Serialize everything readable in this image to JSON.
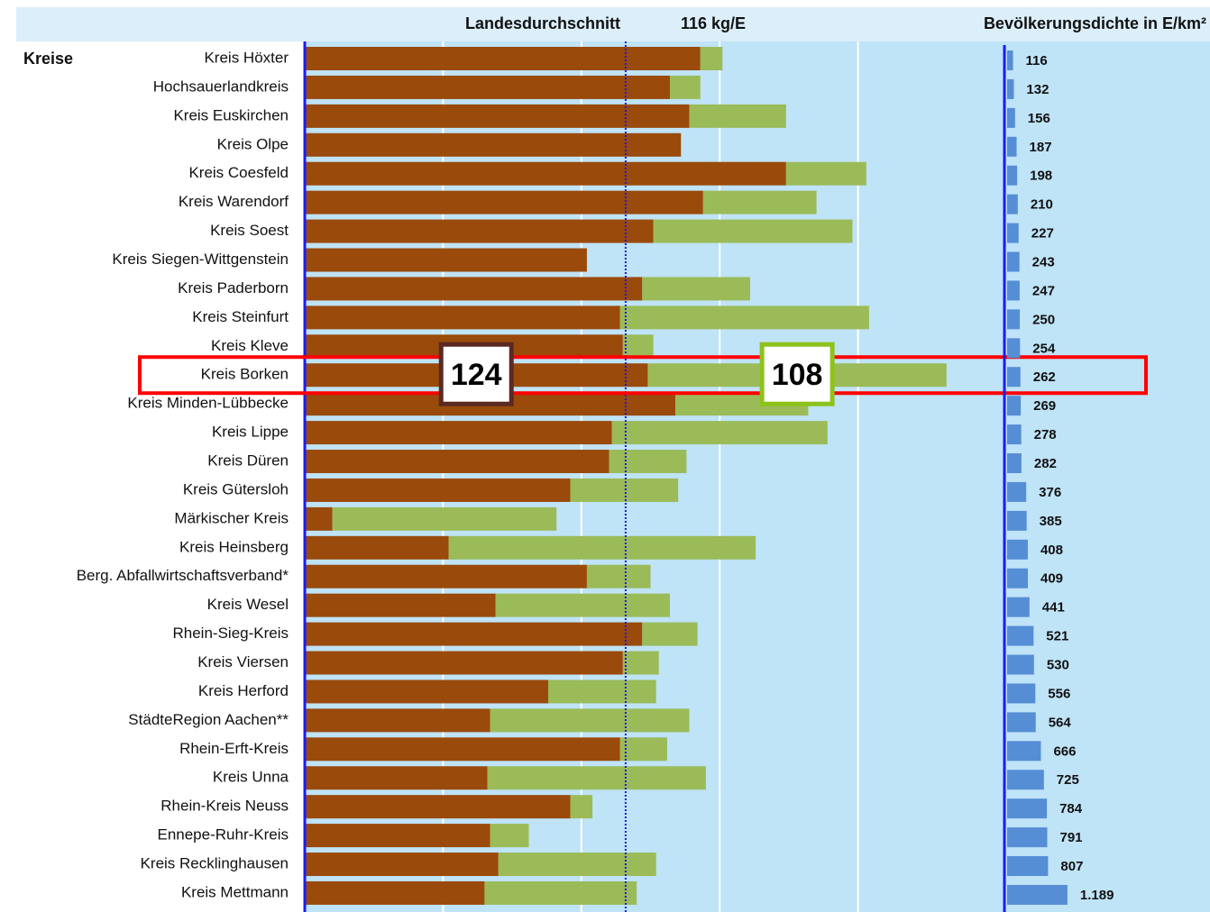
{
  "chart_data": [
    {
      "type": "stacked-hbar",
      "category_header": "Kreise",
      "average_label": "Landesdurchschnitt",
      "average_value": 116,
      "average_value_label": "116 kg/E",
      "categories": [
        "Kreis Höxter",
        "Hochsauerlandkreis",
        "Kreis Euskirchen",
        "Kreis Olpe",
        "Kreis Coesfeld",
        "Kreis Warendorf",
        "Kreis Soest",
        "Kreis Siegen-Wittgenstein",
        "Kreis Paderborn",
        "Kreis Steinfurt",
        "Kreis Kleve",
        "Kreis Borken",
        "Kreis Minden-Lübbecke",
        "Kreis Lippe",
        "Kreis Düren",
        "Kreis Gütersloh",
        "Märkischer Kreis",
        "Kreis Heinsberg",
        "Berg. Abfallwirtschaftsverband*",
        "Kreis Wesel",
        "Rhein-Sieg-Kreis",
        "Kreis Viersen",
        "Kreis Herford",
        "StädteRegion Aachen**",
        "Rhein-Erft-Kreis",
        "Kreis Unna",
        "Rhein-Kreis Neuss",
        "Ennepe-Ruhr-Kreis",
        "Kreis Recklinghausen",
        "Kreis Mettmann"
      ],
      "series": [
        {
          "color": "#9a4a0a",
          "label_border": "#5a2a22",
          "values": [
            143,
            132,
            139,
            136,
            174,
            144,
            126,
            102,
            122,
            114,
            115,
            124,
            134,
            111,
            110,
            96,
            10,
            52,
            102,
            69,
            122,
            115,
            88,
            67,
            114,
            66,
            96,
            67,
            70,
            65
          ],
          "value_labels": [
            null,
            null,
            null,
            null,
            null,
            null,
            null,
            null,
            null,
            null,
            null,
            "124",
            null,
            null,
            null,
            null,
            null,
            null,
            null,
            null,
            null,
            null,
            null,
            null,
            null,
            null,
            null,
            null,
            null,
            null
          ]
        },
        {
          "color": "#9bbb59",
          "label_border": "#8cc21a",
          "values": [
            8,
            11,
            35,
            0,
            29,
            41,
            72,
            0,
            39,
            90,
            11,
            108,
            48,
            78,
            28,
            39,
            81,
            111,
            23,
            63,
            20,
            13,
            39,
            72,
            17,
            79,
            8,
            14,
            57,
            55
          ],
          "value_labels": [
            null,
            null,
            null,
            null,
            null,
            null,
            null,
            null,
            null,
            null,
            null,
            "108",
            null,
            null,
            null,
            null,
            null,
            null,
            null,
            null,
            null,
            null,
            null,
            null,
            null,
            null,
            null,
            null,
            null,
            null
          ]
        }
      ],
      "xlim": [
        0,
        250
      ],
      "xticks": [
        50,
        100,
        150,
        200
      ],
      "grid": true,
      "highlight_color": "#ff0000"
    },
    {
      "type": "hbar",
      "title": "Bevölkerungsdichte in E/km²",
      "color": "#558ed5",
      "values": [
        116,
        132,
        156,
        187,
        198,
        210,
        227,
        243,
        247,
        250,
        254,
        262,
        269,
        278,
        282,
        376,
        385,
        408,
        409,
        441,
        521,
        530,
        556,
        564,
        666,
        725,
        784,
        791,
        807,
        1189
      ],
      "value_labels": [
        "116",
        "132",
        "156",
        "187",
        "198",
        "210",
        "227",
        "243",
        "247",
        "250",
        "254",
        "262",
        "269",
        "278",
        "282",
        "376",
        "385",
        "408",
        "409",
        "441",
        "521",
        "530",
        "556",
        "564",
        "666",
        "725",
        "784",
        "791",
        "807",
        "1.189"
      ],
      "xlim": [
        0,
        4000
      ]
    }
  ]
}
